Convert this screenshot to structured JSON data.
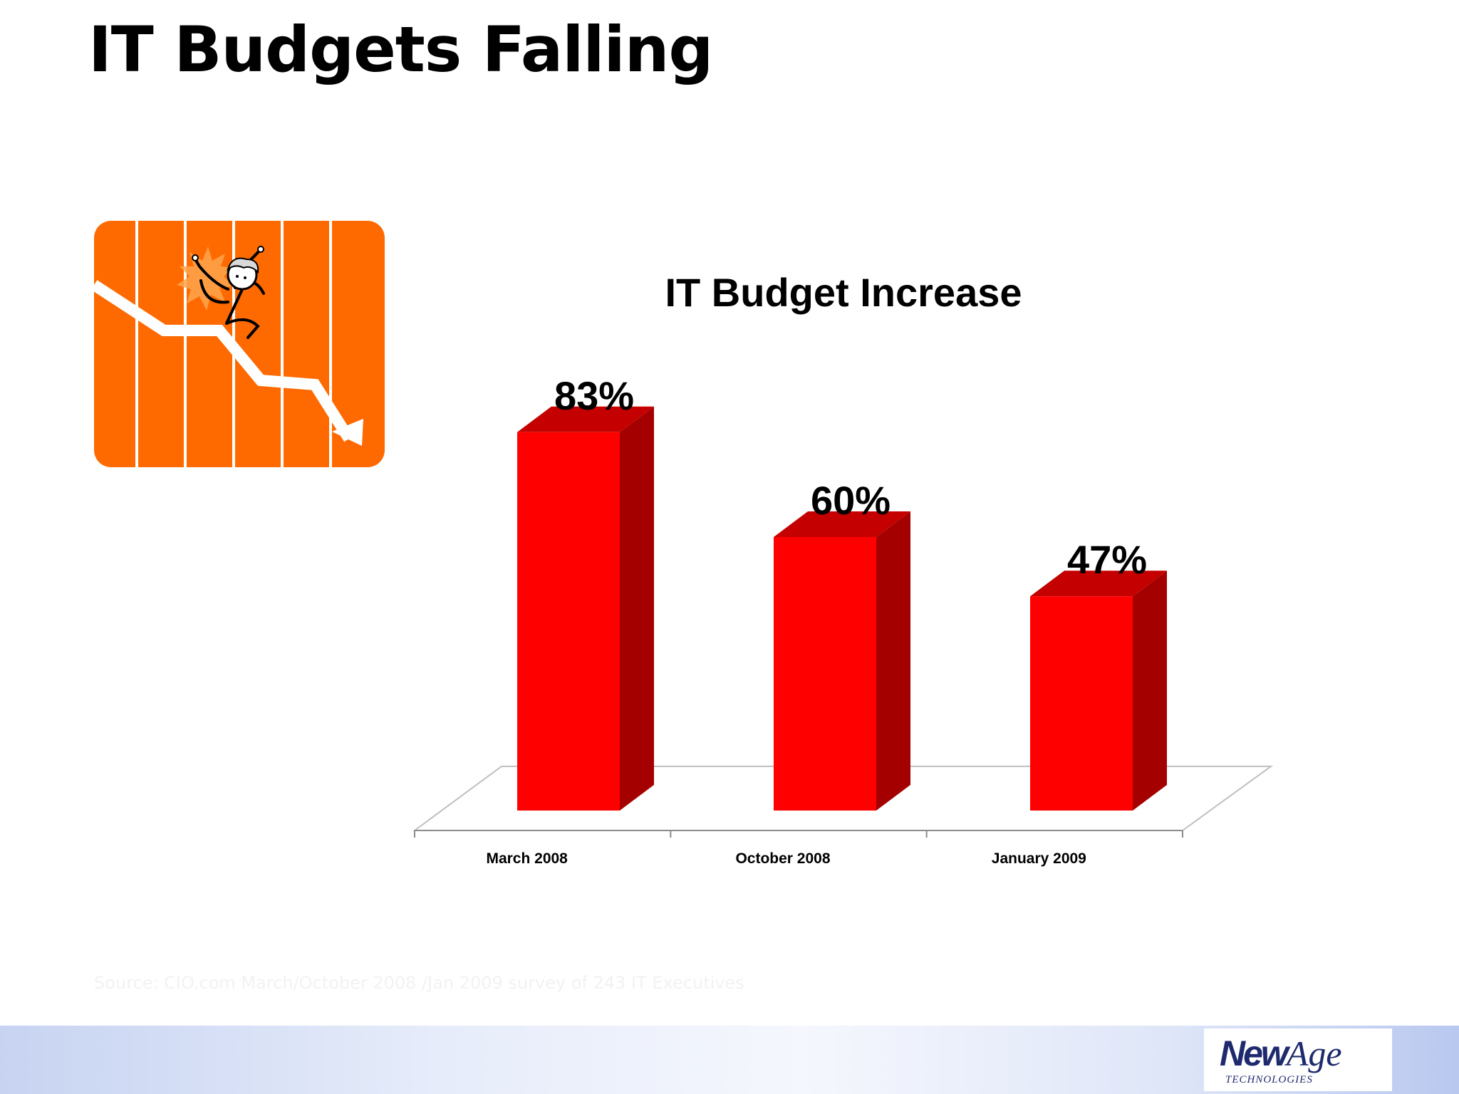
{
  "slide": {
    "title": "IT Budgets Falling",
    "source": "Source: CIO.com March/October 2008 /Jan 2009 survey of 243 IT Executives"
  },
  "logo": {
    "main_part1": "New",
    "main_part2": "Age",
    "subtitle": "TECHNOLOGIES"
  },
  "graphic": {
    "icon": "falling-chart-man-icon",
    "background_color": "#ff6a00"
  },
  "colors": {
    "bar_front": "#ff0000",
    "bar_side": "#a50000",
    "bar_top": "#c40000"
  },
  "chart_data": {
    "type": "bar",
    "title": "IT Budget Increase",
    "categories": [
      "March 2008",
      "October 2008",
      "January 2009"
    ],
    "values": [
      83,
      60,
      47
    ],
    "labels": [
      "83%",
      "60%",
      "47%"
    ],
    "unit": "%",
    "ylim": [
      0,
      100
    ],
    "grid": false,
    "legend": "none",
    "style": "3d-column"
  }
}
